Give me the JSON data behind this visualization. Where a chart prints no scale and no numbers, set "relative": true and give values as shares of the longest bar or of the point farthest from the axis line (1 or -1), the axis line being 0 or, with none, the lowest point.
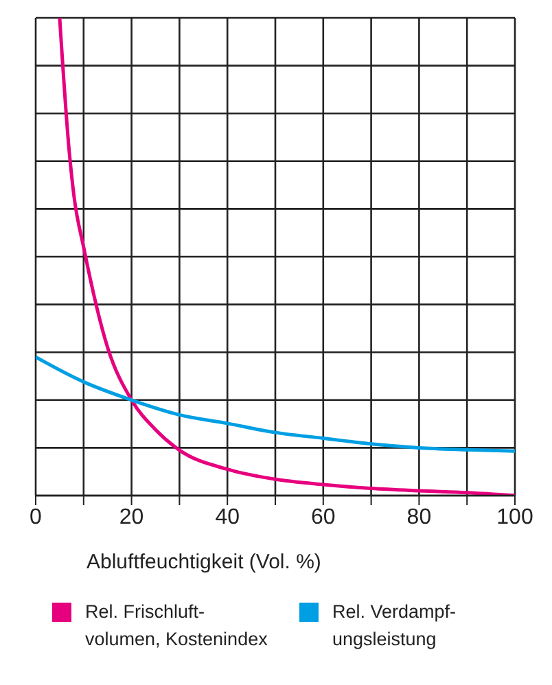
{
  "chart_data": {
    "type": "line",
    "relative": true,
    "xlabel": "Abluftfeuchtigkeit (Vol. %)",
    "xlim": [
      0,
      100
    ],
    "xticks": [
      0,
      {
        "value": 10,
        "label": null
      },
      20,
      {
        "value": 30,
        "label": null
      },
      40,
      {
        "value": 50,
        "label": null
      },
      60,
      {
        "value": 70,
        "label": null
      },
      80,
      {
        "value": 90,
        "label": null
      },
      100
    ],
    "grid": true,
    "legend": "bottom",
    "marker": "none",
    "line_style": "solid",
    "series": [
      {
        "name": "Rel. Frischluft-volumen, Kostenindex",
        "color": "#e6007e",
        "x": [
          5,
          7,
          8,
          10,
          15,
          20,
          25,
          30,
          40,
          50,
          60,
          70,
          80,
          90,
          100
        ],
        "values": [
          1,
          0.72,
          0.626,
          0.52,
          0.31,
          0.2,
          0.138,
          0.095,
          0.055,
          0.034,
          0.023,
          0.015,
          0.01,
          0.006,
          0
        ]
      },
      {
        "name": "Rel. Verdampf-ungsleistung",
        "color": "#009fe3",
        "x": [
          0,
          10,
          20,
          30,
          40,
          50,
          60,
          70,
          80,
          90,
          100
        ],
        "values": [
          0.29,
          0.238,
          0.2,
          0.169,
          0.151,
          0.132,
          0.12,
          0.108,
          0.1,
          0.096,
          0.093
        ]
      }
    ]
  }
}
